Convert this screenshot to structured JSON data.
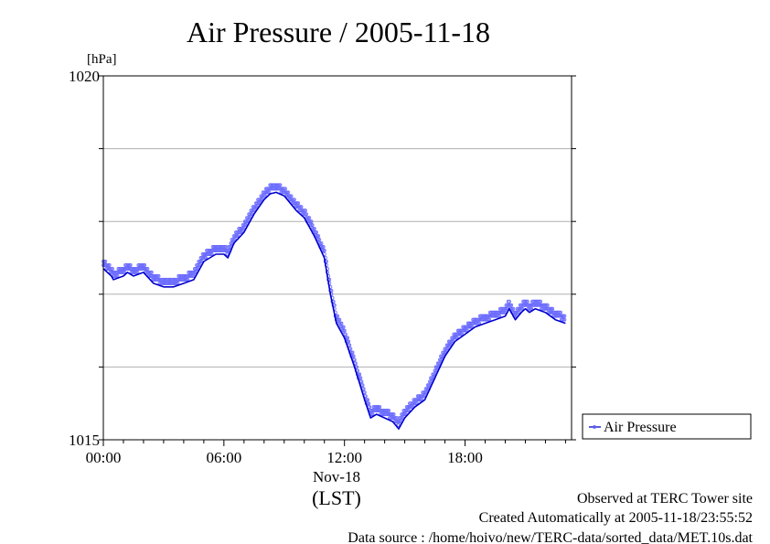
{
  "chart_data": {
    "type": "line",
    "title": "Air Pressure / 2005-11-18",
    "ylabel": "[hPa]",
    "xlabel": "(LST)",
    "x_date_label": "Nov-18",
    "ylim": [
      1015,
      1020
    ],
    "xlim": [
      0,
      23
    ],
    "y_ticks": [
      "1015",
      "1020"
    ],
    "x_ticks": [
      "00:00",
      "06:00",
      "12:00",
      "18:00"
    ],
    "grid": true,
    "legend_position": "right",
    "series": [
      {
        "name": "Air Pressure",
        "color": "#0000cc",
        "marker_color": "#6b6bff",
        "x": [
          0.0,
          0.4,
          0.5,
          1.0,
          1.2,
          1.5,
          2.0,
          2.5,
          3.0,
          3.5,
          4.0,
          4.5,
          5.0,
          5.3,
          5.6,
          6.0,
          6.2,
          6.5,
          7.0,
          7.5,
          8.0,
          8.3,
          8.6,
          9.0,
          9.3,
          9.6,
          10.0,
          10.5,
          11.0,
          11.3,
          11.6,
          12.0,
          12.5,
          13.0,
          13.3,
          13.6,
          14.0,
          14.4,
          14.7,
          15.0,
          15.5,
          16.0,
          16.5,
          17.0,
          17.5,
          18.0,
          18.5,
          19.0,
          19.5,
          20.0,
          20.2,
          20.5,
          20.8,
          21.0,
          21.2,
          21.5,
          22.0,
          22.5,
          23.0
        ],
        "y": [
          1017.35,
          1017.25,
          1017.2,
          1017.25,
          1017.3,
          1017.25,
          1017.3,
          1017.15,
          1017.1,
          1017.1,
          1017.15,
          1017.2,
          1017.45,
          1017.5,
          1017.55,
          1017.55,
          1017.5,
          1017.7,
          1017.85,
          1018.1,
          1018.3,
          1018.38,
          1018.4,
          1018.35,
          1018.25,
          1018.15,
          1018.05,
          1017.8,
          1017.5,
          1017.0,
          1016.6,
          1016.4,
          1016.0,
          1015.55,
          1015.3,
          1015.35,
          1015.3,
          1015.25,
          1015.15,
          1015.3,
          1015.45,
          1015.55,
          1015.85,
          1016.15,
          1016.35,
          1016.45,
          1016.55,
          1016.6,
          1016.65,
          1016.7,
          1016.8,
          1016.65,
          1016.75,
          1016.8,
          1016.75,
          1016.8,
          1016.75,
          1016.65,
          1016.6
        ]
      }
    ]
  },
  "footer": {
    "line1": "Observed at TERC Tower site",
    "line2": "Created Automatically at 2005-11-18/23:55:52",
    "line3": "Data source : /home/hoivo/new/TERC-data/sorted_data/MET.10s.dat"
  }
}
